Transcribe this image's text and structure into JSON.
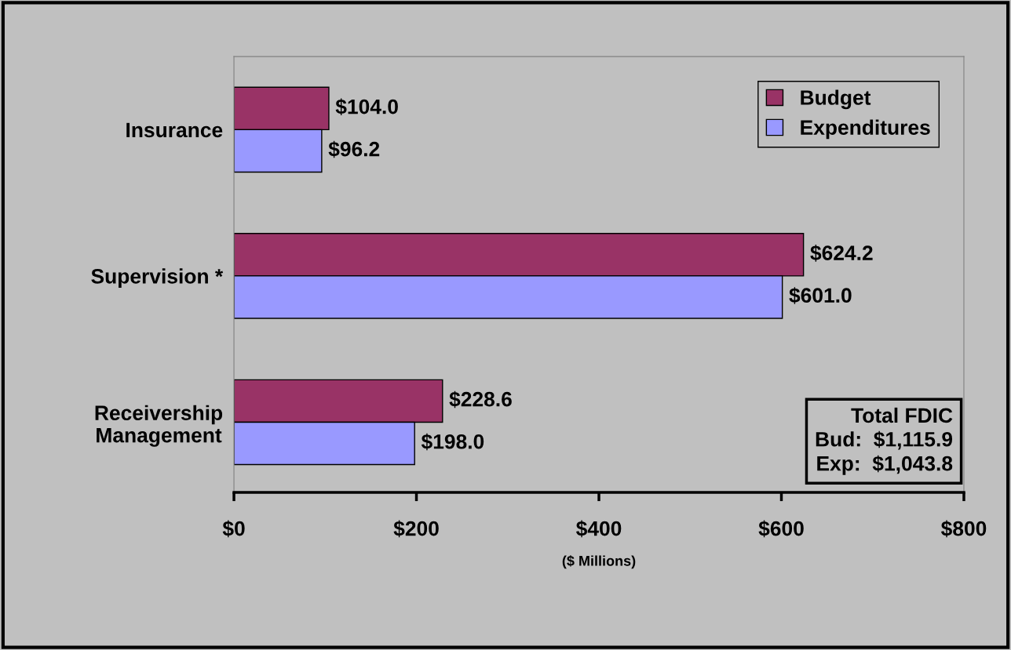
{
  "chart_data": {
    "type": "bar",
    "orientation": "horizontal",
    "xlabel": "($ Millions)",
    "categories": [
      "Insurance",
      "Supervision *",
      "Receivership\nManagement"
    ],
    "series": [
      {
        "name": "Budget",
        "color": "#993366",
        "values": [
          104.0,
          624.2,
          228.6
        ],
        "value_labels": [
          "$104.0",
          "$624.2",
          "$228.6"
        ]
      },
      {
        "name": "Expenditures",
        "color": "#9999ff",
        "values": [
          96.2,
          601.0,
          198.0
        ],
        "value_labels": [
          "$96.2",
          "$601.0",
          "$198.0"
        ]
      }
    ],
    "xlim": [
      0,
      800
    ],
    "xticks": [
      {
        "value": 0,
        "label": "$0"
      },
      {
        "value": 200,
        "label": "$200"
      },
      {
        "value": 400,
        "label": "$400"
      },
      {
        "value": 600,
        "label": "$600"
      },
      {
        "value": 800,
        "label": "$800"
      }
    ],
    "legend": "top right",
    "grid": false,
    "annotations": [
      "Total FDIC\nBud:  $1,115.9\nExp:  $1,043.8"
    ]
  }
}
